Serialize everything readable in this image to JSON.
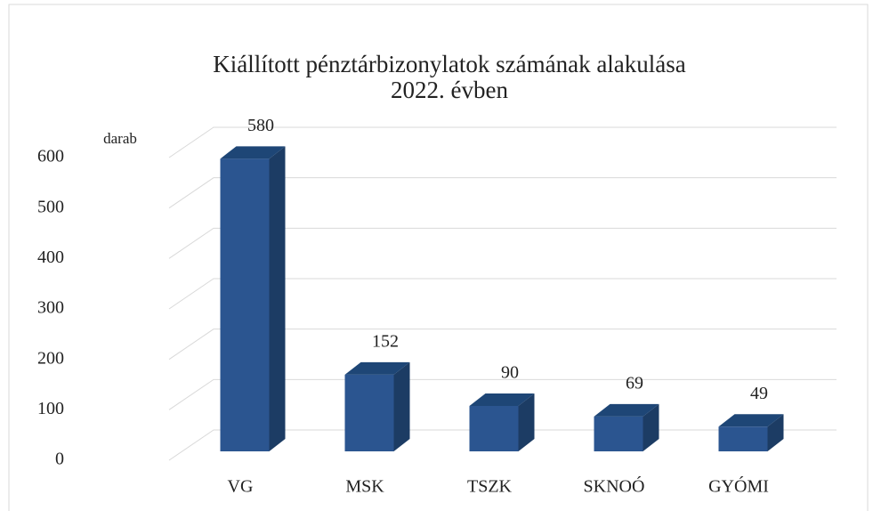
{
  "chart_data": {
    "type": "bar3d",
    "title_lines": [
      "Kiállított pénztárbizonylatok számának alakulása",
      "2022. évben"
    ],
    "y_axis_label": "darab",
    "categories": [
      "VG",
      "MSK",
      "TSZK",
      "SKNOÓ",
      "GYÓMI"
    ],
    "values": [
      580,
      152,
      90,
      69,
      49
    ],
    "color": "#2b5590",
    "ylim": [
      0,
      600
    ],
    "yticks": [
      0,
      100,
      200,
      300,
      400,
      500,
      600
    ],
    "grid": true
  }
}
